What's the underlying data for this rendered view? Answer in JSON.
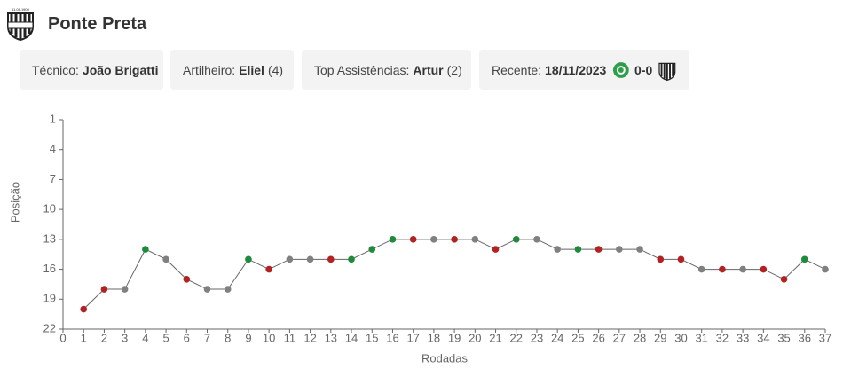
{
  "header": {
    "logo_text": "11.08.1900",
    "title": "Ponte Preta"
  },
  "cards": [
    {
      "label": "Técnico:",
      "value": "João Brigatti"
    },
    {
      "label": "Artilheiro:",
      "value": "Eliel",
      "extra": "(4)"
    },
    {
      "label": "Top Assistências:",
      "value": "Artur",
      "extra": "(2)"
    },
    {
      "label": "Recente:",
      "value": "18/11/2023",
      "score": "0-0"
    }
  ],
  "chart_data": {
    "type": "line",
    "xlabel": "Rodadas",
    "ylabel": "Posição",
    "x": [
      1,
      2,
      3,
      4,
      5,
      6,
      7,
      8,
      9,
      10,
      11,
      12,
      13,
      14,
      15,
      16,
      17,
      18,
      19,
      20,
      21,
      22,
      23,
      24,
      25,
      26,
      27,
      28,
      29,
      30,
      31,
      32,
      33,
      34,
      35,
      36,
      37
    ],
    "values": [
      20,
      18,
      18,
      14,
      15,
      17,
      18,
      18,
      15,
      16,
      15,
      15,
      15,
      15,
      14,
      13,
      13,
      13,
      13,
      13,
      14,
      13,
      13,
      14,
      14,
      14,
      14,
      14,
      15,
      15,
      16,
      16,
      16,
      16,
      17,
      15,
      16
    ],
    "point_colors": [
      "#b22222",
      "#b22222",
      "#808080",
      "#1e8a3c",
      "#808080",
      "#b22222",
      "#808080",
      "#808080",
      "#1e8a3c",
      "#b22222",
      "#808080",
      "#808080",
      "#b22222",
      "#1e8a3c",
      "#1e8a3c",
      "#1e8a3c",
      "#b22222",
      "#808080",
      "#b22222",
      "#808080",
      "#b22222",
      "#1e8a3c",
      "#808080",
      "#808080",
      "#1e8a3c",
      "#b22222",
      "#808080",
      "#808080",
      "#b22222",
      "#b22222",
      "#808080",
      "#b22222",
      "#808080",
      "#b22222",
      "#b22222",
      "#1e8a3c",
      "#808080"
    ],
    "line_color": "#666666",
    "xlim": [
      0,
      37
    ],
    "ylim": [
      22,
      1
    ],
    "xticks": [
      0,
      1,
      2,
      3,
      4,
      5,
      6,
      7,
      8,
      9,
      10,
      11,
      12,
      13,
      14,
      15,
      16,
      17,
      18,
      19,
      20,
      21,
      22,
      23,
      24,
      25,
      26,
      27,
      28,
      29,
      30,
      31,
      32,
      33,
      34,
      35,
      36,
      37
    ],
    "yticks": [
      1,
      4,
      7,
      10,
      13,
      16,
      19,
      22
    ]
  }
}
